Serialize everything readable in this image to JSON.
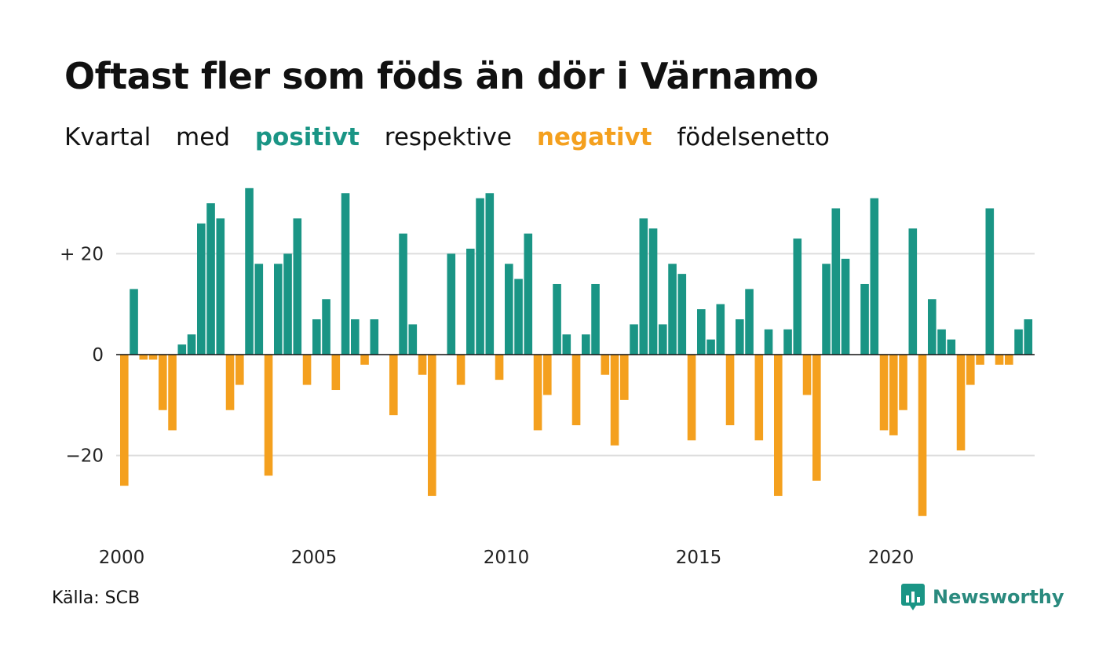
{
  "header": {
    "title": "Oftast fler som föds än dör i Värnamo",
    "subtitle_parts": [
      "Kvartal",
      "med",
      "positivt",
      "respektive",
      "negativt",
      "födelsenetto"
    ]
  },
  "colors": {
    "positive": "#1a9585",
    "negative": "#f4a01e",
    "grid": "#dddddd",
    "axis": "#111111"
  },
  "footer": {
    "source": "Källa: SCB",
    "logo_text": "Newsworthy",
    "logo_icon": "bar-chart-icon"
  },
  "chart_data": {
    "type": "bar",
    "title": "Oftast fler som föds än dör i Värnamo",
    "subtitle": "Kvartal med positivt respektive negativt födelsenetto",
    "x_start_year": 2000,
    "x_ticks": [
      "2000",
      "2005",
      "2010",
      "2015",
      "2020"
    ],
    "y_ticks": [
      20,
      0,
      -20
    ],
    "y_tick_labels": [
      "+ 20",
      "0",
      "−20"
    ],
    "ylim": [
      -35,
      35
    ],
    "grid": true,
    "periods": [
      "2000K1",
      "2000K2",
      "2000K3",
      "2000K4",
      "2001K1",
      "2001K2",
      "2001K3",
      "2001K4",
      "2002K1",
      "2002K2",
      "2002K3",
      "2002K4",
      "2003K1",
      "2003K2",
      "2003K3",
      "2003K4",
      "2004K1",
      "2004K2",
      "2004K3",
      "2004K4",
      "2005K1",
      "2005K2",
      "2005K3",
      "2005K4",
      "2006K1",
      "2006K2",
      "2006K3",
      "2006K4",
      "2007K1",
      "2007K2",
      "2007K3",
      "2007K4",
      "2008K1",
      "2008K2",
      "2008K3",
      "2008K4",
      "2009K1",
      "2009K2",
      "2009K3",
      "2009K4",
      "2010K1",
      "2010K2",
      "2010K3",
      "2010K4",
      "2011K1",
      "2011K2",
      "2011K3",
      "2011K4",
      "2012K1",
      "2012K2",
      "2012K3",
      "2012K4",
      "2013K1",
      "2013K2",
      "2013K3",
      "2013K4",
      "2014K1",
      "2014K2",
      "2014K3",
      "2014K4",
      "2015K1",
      "2015K2",
      "2015K3",
      "2015K4",
      "2016K1",
      "2016K2",
      "2016K3",
      "2016K4",
      "2017K1",
      "2017K2",
      "2017K3",
      "2017K4",
      "2018K1",
      "2018K2",
      "2018K3",
      "2018K4",
      "2019K1",
      "2019K2",
      "2019K3",
      "2019K4",
      "2020K1",
      "2020K2",
      "2020K3",
      "2020K4",
      "2021K1",
      "2021K2",
      "2021K3",
      "2021K4",
      "2022K1",
      "2022K2",
      "2022K3",
      "2022K4",
      "2023K1",
      "2023K2",
      "2023K3",
      "2023K4"
    ],
    "values": [
      -26,
      13,
      -1,
      -1,
      -11,
      -15,
      2,
      4,
      26,
      30,
      27,
      -11,
      -6,
      33,
      18,
      -24,
      18,
      20,
      27,
      -6,
      7,
      11,
      -7,
      32,
      7,
      -2,
      7,
      0,
      -12,
      24,
      6,
      -4,
      -28,
      0,
      20,
      -6,
      21,
      31,
      32,
      -5,
      18,
      15,
      24,
      -15,
      -8,
      14,
      4,
      -14,
      4,
      14,
      -4,
      -18,
      -9,
      6,
      27,
      25,
      6,
      18,
      16,
      -17,
      9,
      3,
      10,
      -14,
      7,
      13,
      -17,
      5,
      -28,
      5,
      23,
      -8,
      -25,
      18,
      29,
      19,
      0,
      14,
      31,
      -15,
      -16,
      -11,
      25,
      -32,
      11,
      5,
      3,
      -19,
      -6,
      -2,
      29,
      -2,
      -2,
      5,
      7,
      0
    ]
  }
}
